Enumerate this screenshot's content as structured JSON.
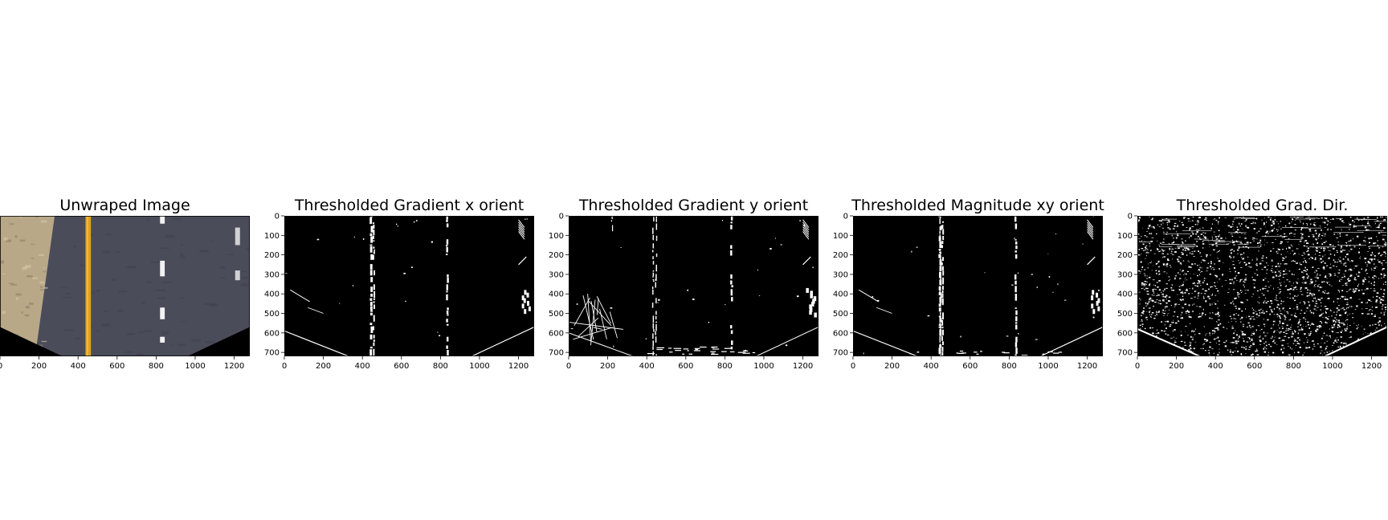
{
  "panels": [
    {
      "id": "unwarped",
      "title": "Unwraped Image",
      "kind": "color",
      "show_yaxis": false,
      "xticks": [
        "0",
        "200",
        "400",
        "600",
        "800",
        "1000",
        "1200"
      ],
      "yticks": []
    },
    {
      "id": "gradx",
      "title": "Thresholded Gradient x orient",
      "kind": "gradx",
      "show_yaxis": true,
      "xticks": [
        "0",
        "200",
        "400",
        "600",
        "800",
        "1000",
        "1200"
      ],
      "yticks": [
        "0",
        "100",
        "200",
        "300",
        "400",
        "500",
        "600",
        "700"
      ]
    },
    {
      "id": "grady",
      "title": "Thresholded Gradient y orient",
      "kind": "grady",
      "show_yaxis": true,
      "xticks": [
        "0",
        "200",
        "400",
        "600",
        "800",
        "1000",
        "1200"
      ],
      "yticks": [
        "0",
        "100",
        "200",
        "300",
        "400",
        "500",
        "600",
        "700"
      ]
    },
    {
      "id": "magxy",
      "title": "Thresholded Magnitude xy orient",
      "kind": "mag",
      "show_yaxis": true,
      "xticks": [
        "0",
        "200",
        "400",
        "600",
        "800",
        "1000",
        "1200"
      ],
      "yticks": [
        "0",
        "100",
        "200",
        "300",
        "400",
        "500",
        "600",
        "700"
      ]
    },
    {
      "id": "graddir",
      "title": "Thresholded Grad. Dir.",
      "kind": "dir",
      "show_yaxis": true,
      "xticks": [
        "0",
        "200",
        "400",
        "600",
        "800",
        "1000",
        "1200"
      ],
      "yticks": [
        "0",
        "100",
        "200",
        "300",
        "400",
        "500",
        "600",
        "700"
      ]
    }
  ],
  "image_extent": {
    "x": [
      0,
      1280
    ],
    "y": [
      720,
      0
    ]
  },
  "colors": {
    "road_asphalt": "#4a4c5a",
    "road_edge": "#b8a888",
    "yellow_lane": "#e0a020",
    "white_lane": "#f2f2f2",
    "binary_bg": "#000000",
    "binary_fg": "#ffffff"
  }
}
